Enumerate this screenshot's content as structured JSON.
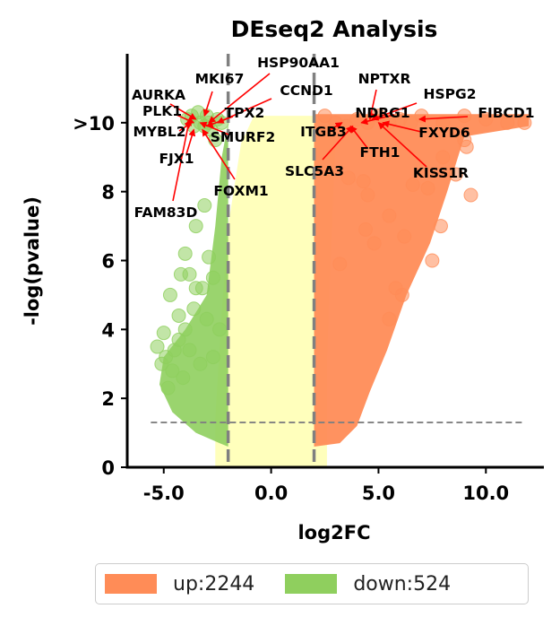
{
  "chart_data": {
    "type": "scatter",
    "title": "DEseq2 Analysis",
    "xlabel": "log2FC",
    "ylabel": "-log(pvalue)",
    "xlim": [
      -6.7,
      12.7
    ],
    "ylim": [
      0,
      12
    ],
    "xticks": [
      -5.0,
      0.0,
      5.0,
      10.0
    ],
    "xtick_labels": [
      "-5.0",
      "0.0",
      "5.0",
      "10.0"
    ],
    "yticks": [
      0,
      2,
      4,
      6,
      8,
      10
    ],
    "ytick_labels": [
      "0",
      "2",
      "4",
      "6",
      "8",
      ">10"
    ],
    "thresholds": {
      "log2fc": [
        -2,
        2
      ],
      "pvalue_line": 1.3
    },
    "colors": {
      "up": "#FF8C57",
      "down": "#8FCF5E",
      "ns": "#FFFFB8",
      "arrow": "#FF0000",
      "threshold": "#808080"
    },
    "legend": {
      "position": "bottom",
      "entries": [
        {
          "label": "up:2244",
          "color": "#FF8C57"
        },
        {
          "label": "down:524",
          "color": "#8FCF5E"
        }
      ]
    },
    "series": [
      {
        "name": "down",
        "points": [
          [
            -5.3,
            3.5
          ],
          [
            -5.0,
            3.9
          ],
          [
            -4.9,
            3.2
          ],
          [
            -5.1,
            3.0
          ],
          [
            -4.5,
            3.4
          ],
          [
            -4.3,
            4.4
          ],
          [
            -4.2,
            5.6
          ],
          [
            -4.7,
            5.0
          ],
          [
            -4.0,
            6.2
          ],
          [
            -3.8,
            5.6
          ],
          [
            -3.5,
            5.2
          ],
          [
            -3.5,
            7.0
          ],
          [
            -3.1,
            7.6
          ],
          [
            -2.9,
            6.1
          ],
          [
            -4.3,
            3.7
          ],
          [
            -3.8,
            3.4
          ],
          [
            -3.3,
            3.0
          ],
          [
            -4.6,
            2.8
          ],
          [
            -3.6,
            4.6
          ],
          [
            -2.7,
            5.5
          ],
          [
            -2.4,
            4.0
          ],
          [
            -3.0,
            4.3
          ],
          [
            -4.0,
            4.0
          ],
          [
            -3.2,
            5.2
          ],
          [
            -2.7,
            3.2
          ],
          [
            -4.8,
            2.3
          ],
          [
            -4.1,
            2.6
          ],
          [
            -3.9,
            10.1
          ],
          [
            -3.6,
            9.9
          ],
          [
            -3.3,
            10.0
          ],
          [
            -3.0,
            10.2
          ],
          [
            -2.8,
            9.8
          ],
          [
            -2.5,
            10.1
          ],
          [
            -3.4,
            10.3
          ],
          [
            -2.9,
            10.0
          ],
          [
            -3.7,
            10.2
          ],
          [
            -3.1,
            9.9
          ],
          [
            -2.6,
            9.5
          ],
          [
            -2.3,
            10.0
          ]
        ]
      },
      {
        "name": "up",
        "points": [
          [
            2.5,
            10.2
          ],
          [
            3.0,
            10.0
          ],
          [
            3.5,
            9.9
          ],
          [
            4.0,
            10.1
          ],
          [
            4.5,
            10.0
          ],
          [
            5.0,
            10.2
          ],
          [
            5.5,
            10.0
          ],
          [
            6.0,
            10.1
          ],
          [
            6.5,
            10.0
          ],
          [
            7.0,
            10.2
          ],
          [
            8.0,
            10.0
          ],
          [
            9.0,
            10.2
          ],
          [
            10.0,
            10.1
          ],
          [
            11.0,
            10.0
          ],
          [
            11.8,
            10.0
          ],
          [
            9.0,
            9.5
          ],
          [
            9.1,
            9.3
          ],
          [
            9.3,
            7.9
          ],
          [
            8.6,
            8.5
          ],
          [
            8.0,
            9.0
          ],
          [
            7.3,
            8.1
          ],
          [
            6.2,
            6.7
          ],
          [
            5.5,
            7.3
          ],
          [
            4.8,
            6.5
          ],
          [
            5.8,
            5.2
          ],
          [
            4.3,
            8.3
          ],
          [
            4.4,
            6.9
          ],
          [
            6.6,
            8.2
          ],
          [
            7.5,
            6.0
          ],
          [
            5.5,
            4.3
          ],
          [
            6.1,
            5.0
          ],
          [
            3.6,
            8.4
          ],
          [
            3.2,
            5.9
          ],
          [
            4.5,
            7.9
          ],
          [
            7.9,
            7.0
          ]
        ]
      }
    ],
    "annotations": [
      {
        "label": "MKI67",
        "x": -3.1,
        "y": 10.2
      },
      {
        "label": "HSP90AA1",
        "x": -2.9,
        "y": 10.0
      },
      {
        "label": "AURKA",
        "x": -3.5,
        "y": 10.1
      },
      {
        "label": "CCND1",
        "x": -2.5,
        "y": 10.0
      },
      {
        "label": "PLK1",
        "x": -3.6,
        "y": 10.0
      },
      {
        "label": "TPX2",
        "x": -3.0,
        "y": 9.9
      },
      {
        "label": "MYBL2",
        "x": -3.7,
        "y": 10.0
      },
      {
        "label": "SMURF2",
        "x": -3.3,
        "y": 10.0
      },
      {
        "label": "FJX1",
        "x": -3.6,
        "y": 9.8
      },
      {
        "label": "FOXM1",
        "x": -3.2,
        "y": 9.8
      },
      {
        "label": "FAM83D",
        "x": -3.8,
        "y": 10.1
      },
      {
        "label": "NPTXR",
        "x": 4.6,
        "y": 10.1
      },
      {
        "label": "HSPG2",
        "x": 4.7,
        "y": 10.1
      },
      {
        "label": "NDRG1",
        "x": 4.2,
        "y": 10.0
      },
      {
        "label": "FIBCD1",
        "x": 6.9,
        "y": 10.1
      },
      {
        "label": "ITGB3",
        "x": 3.3,
        "y": 10.0
      },
      {
        "label": "FXYD6",
        "x": 5.2,
        "y": 10.0
      },
      {
        "label": "FTH1",
        "x": 3.7,
        "y": 9.9
      },
      {
        "label": "SLC5A3",
        "x": 3.8,
        "y": 9.9
      },
      {
        "label": "KISS1R",
        "x": 5.0,
        "y": 10.0
      }
    ]
  }
}
